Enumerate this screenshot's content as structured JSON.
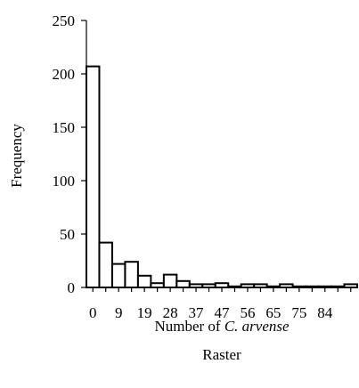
{
  "chart_data": {
    "type": "bar",
    "categories": [
      "0",
      "",
      "9",
      "",
      "19",
      "",
      "28",
      "",
      "37",
      "",
      "47",
      "",
      "56",
      "",
      "65",
      "",
      "75",
      "",
      "84",
      "",
      ""
    ],
    "values": [
      207,
      42,
      22,
      24,
      11,
      4,
      12,
      6,
      3,
      3,
      4,
      1,
      3,
      3,
      1,
      3,
      1,
      1,
      1,
      1,
      3
    ],
    "yticks": [
      0,
      50,
      100,
      150,
      200,
      250
    ],
    "ylim": [
      0,
      250
    ],
    "ylabel": "Frequency",
    "xlabel_prefix": "Number of ",
    "xlabel_species": "C. arvense",
    "sublabel": "Raster",
    "grid": false,
    "bar_color": "#ffffff",
    "edge_color": "#000000"
  }
}
